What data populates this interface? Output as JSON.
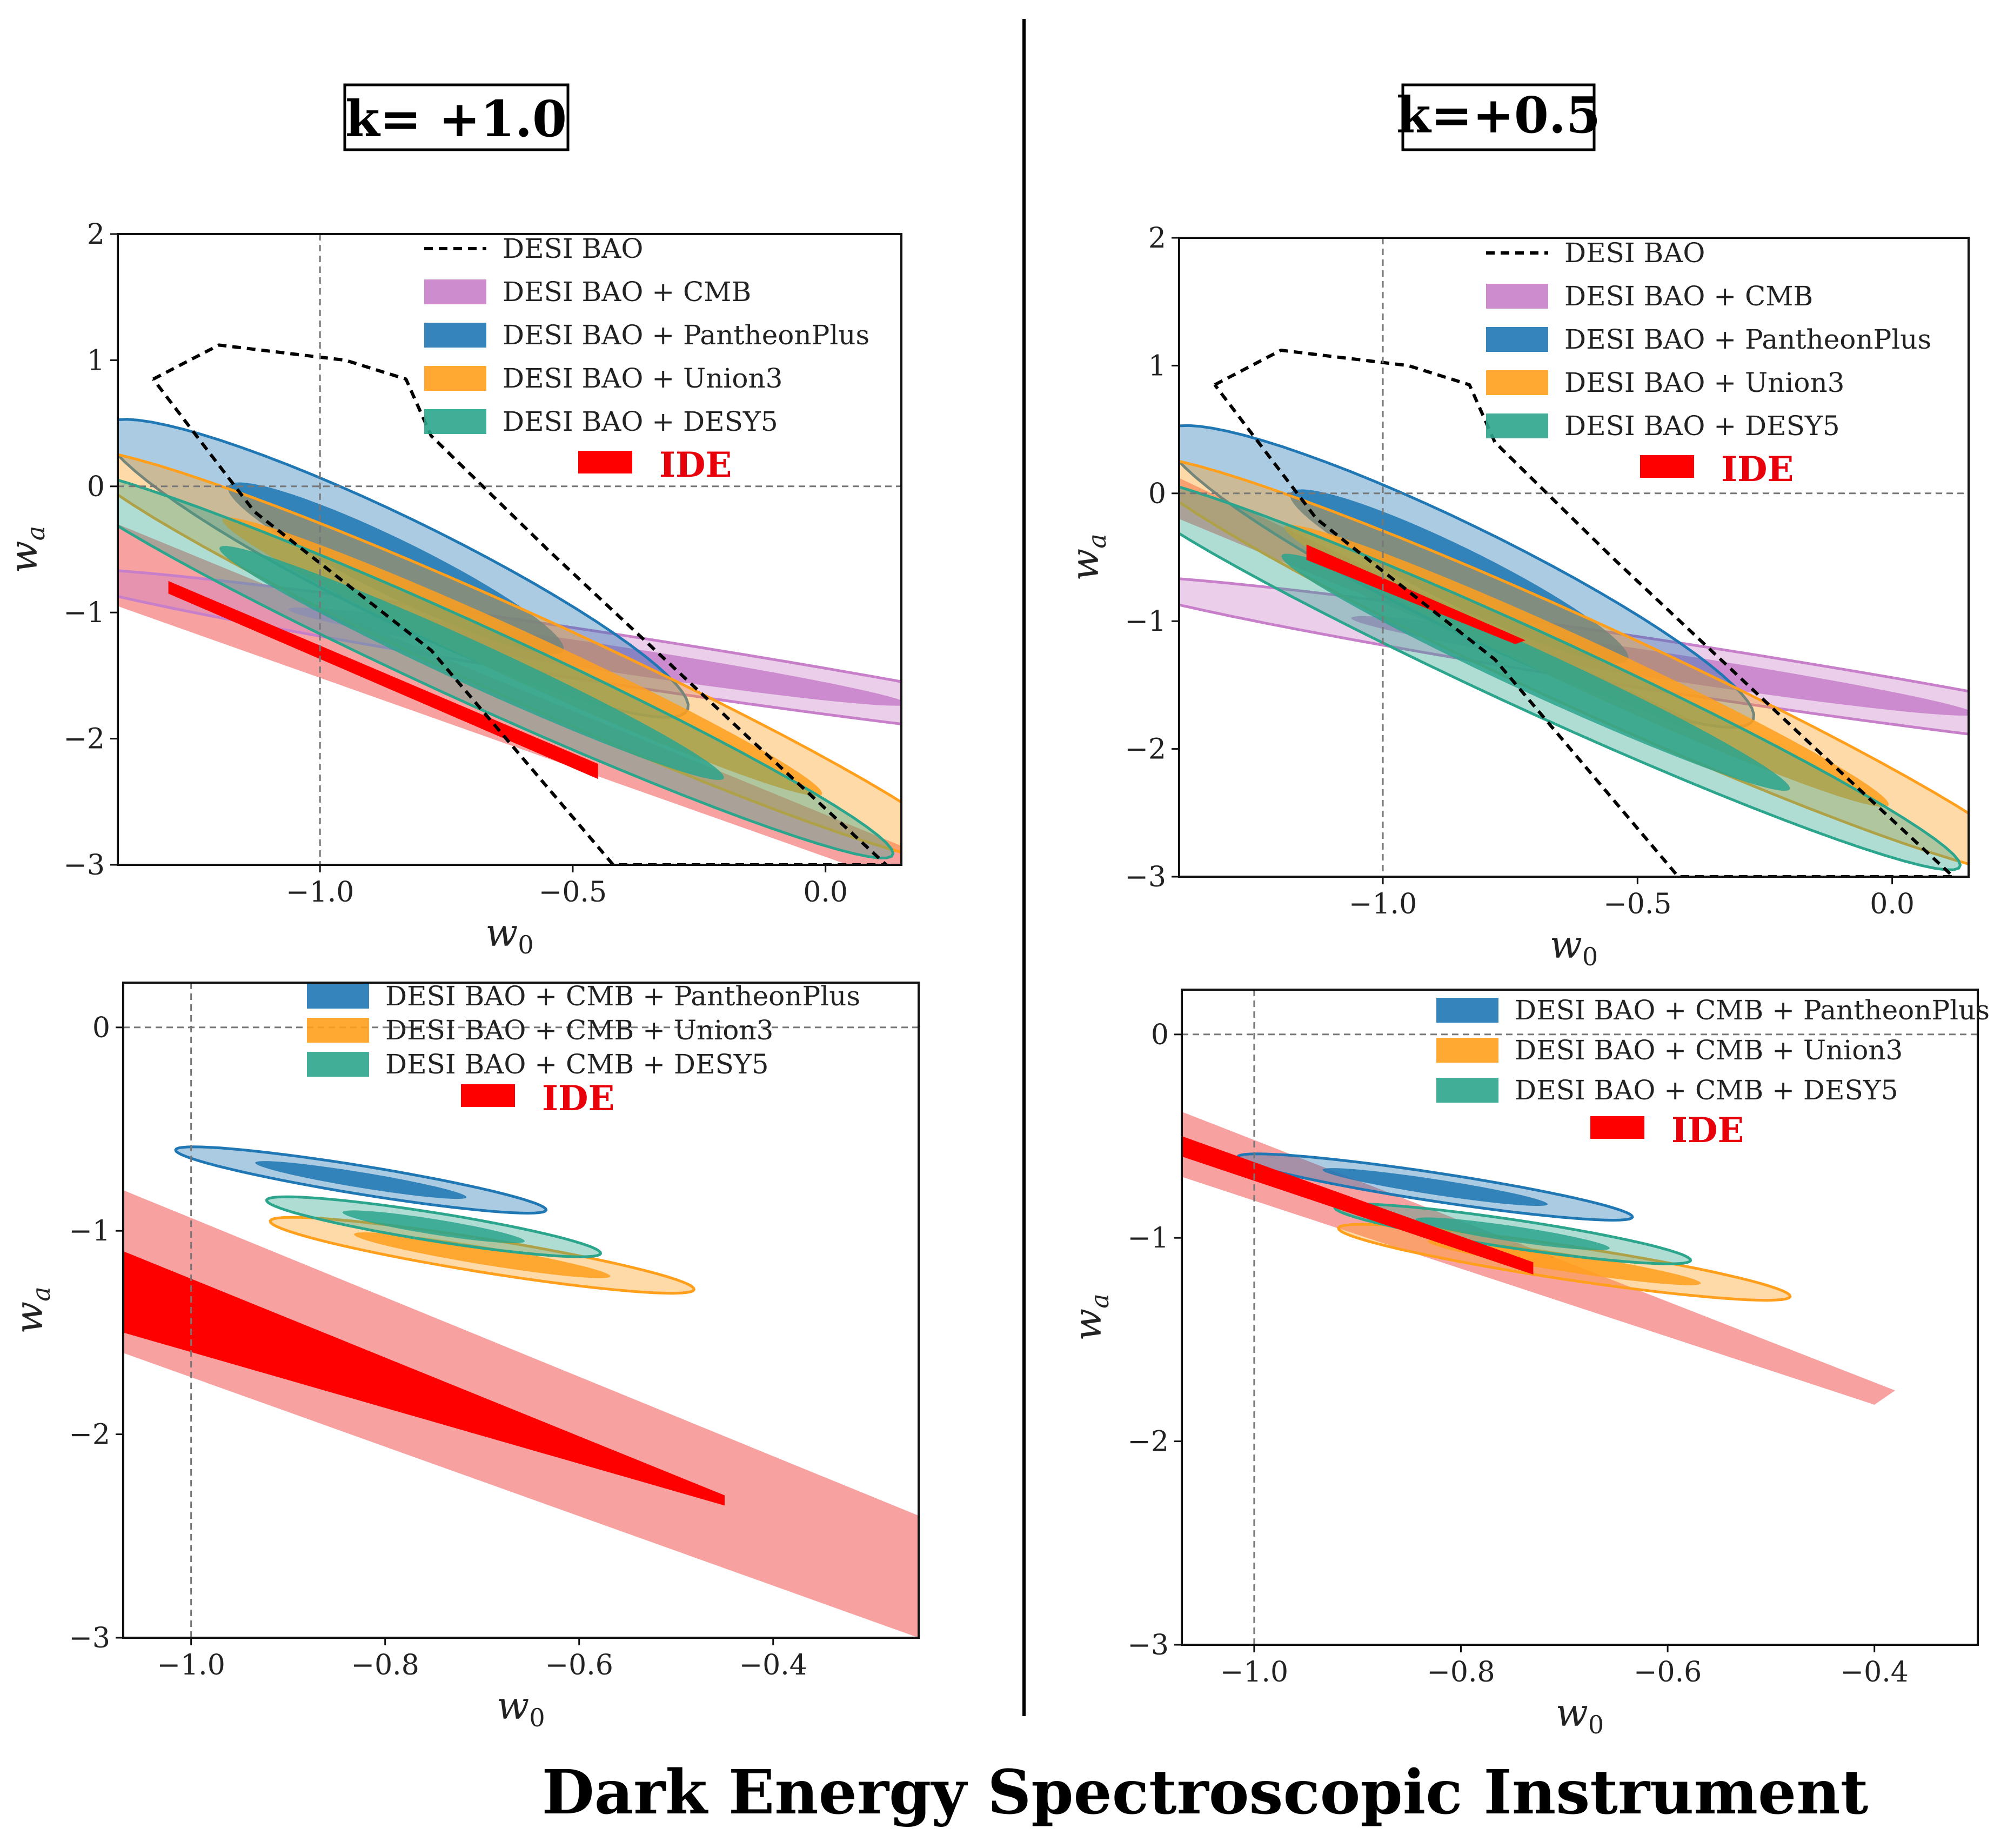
{
  "footer_text": "Dark Energy Spectroscopic Instrument",
  "colors": {
    "desi_bao": "#000000",
    "cmb": "#c77fc9",
    "pantheonplus": "#1f77b4",
    "union3": "#ff9f1c",
    "desy5": "#2ca58d",
    "ide_inner": "#ff0000",
    "ide_outer": "#f7a1a1"
  },
  "columns": [
    {
      "k_label": "k= +1.0"
    },
    {
      "k_label": "k=+0.5"
    }
  ],
  "chart_data": [
    {
      "type": "contour",
      "panel": "top-left",
      "xlabel": "w0",
      "ylabel": "wa",
      "xlim": [
        -1.4,
        0.15
      ],
      "ylim": [
        -3,
        2
      ],
      "xticks": [
        -1.0,
        -0.5,
        0.0
      ],
      "xtick_labels": [
        "−1.0",
        "−0.5",
        "0.0"
      ],
      "yticks": [
        2,
        1,
        0,
        -1,
        -2,
        -3
      ],
      "ytick_labels": [
        "2",
        "1",
        "0",
        "−1",
        "−2",
        "−3"
      ],
      "ref_lines": {
        "w0": -1.0,
        "wa": 0.0
      },
      "legend_position": "top-right",
      "legend": [
        "DESI BAO",
        "DESI BAO + CMB",
        "DESI BAO + PantheonPlus",
        "DESI BAO + Union3",
        "DESI BAO + DESY5",
        "IDE"
      ],
      "contours": [
        {
          "name": "DESI BAO + CMB",
          "color_key": "cmb",
          "center": [
            -0.45,
            -1.35
          ],
          "outer_semi": [
            1.3,
            0.17
          ],
          "inner_semi": [
            0.72,
            0.09
          ],
          "angle_deg": -32
        },
        {
          "name": "DESI BAO + PantheonPlus",
          "color_key": "pantheonplus",
          "center": [
            -0.85,
            -0.65
          ],
          "outer_semi": [
            1.3,
            0.2
          ],
          "inner_semi": [
            0.75,
            0.11
          ],
          "angle_deg": -65
        },
        {
          "name": "DESI BAO + Union3",
          "color_key": "union3",
          "center": [
            -0.6,
            -1.35
          ],
          "outer_semi": [
            1.85,
            0.18
          ],
          "inner_semi": [
            1.25,
            0.1
          ],
          "angle_deg": -62
        },
        {
          "name": "DESI BAO + DESY5",
          "color_key": "desy5",
          "center": [
            -0.7,
            -1.4
          ],
          "outer_semi": [
            1.75,
            0.16
          ],
          "inner_semi": [
            1.05,
            0.09
          ],
          "angle_deg": -62
        }
      ],
      "ide": {
        "outer": [
          [
            -1.4,
            -0.3
          ],
          [
            0.15,
            -2.85
          ],
          [
            0.15,
            -3.15
          ],
          [
            -1.4,
            -0.95
          ]
        ],
        "inner": [
          [
            -1.3,
            -0.75
          ],
          [
            -0.45,
            -2.2
          ],
          [
            -0.45,
            -2.32
          ],
          [
            -1.3,
            -0.85
          ]
        ]
      },
      "desi_bao_dashed": [
        [
          -1.33,
          0.85
        ],
        [
          -1.2,
          1.12
        ],
        [
          -0.95,
          1.0
        ],
        [
          -0.83,
          0.85
        ],
        [
          -0.78,
          0.4
        ],
        [
          -0.55,
          -0.5
        ],
        [
          -0.15,
          -2.0
        ],
        [
          0.12,
          -3.0
        ],
        [
          -0.42,
          -3.0
        ],
        [
          -0.78,
          -1.3
        ],
        [
          -1.13,
          -0.2
        ],
        [
          -1.33,
          0.85
        ]
      ]
    },
    {
      "type": "contour",
      "panel": "top-right",
      "xlabel": "w0",
      "ylabel": "wa",
      "xlim": [
        -1.4,
        0.15
      ],
      "ylim": [
        -3,
        2
      ],
      "xticks": [
        -1.0,
        -0.5,
        0.0
      ],
      "xtick_labels": [
        "−1.0",
        "−0.5",
        "0.0"
      ],
      "yticks": [
        2,
        1,
        0,
        -1,
        -2,
        -3
      ],
      "ytick_labels": [
        "2",
        "1",
        "0",
        "−1",
        "−2",
        "−3"
      ],
      "ref_lines": {
        "w0": -1.0,
        "wa": 0.0
      },
      "legend_position": "top-right",
      "legend": [
        "DESI BAO",
        "DESI BAO + CMB",
        "DESI BAO + PantheonPlus",
        "DESI BAO + Union3",
        "DESI BAO + DESY5",
        "IDE"
      ],
      "contours": [
        {
          "name": "DESI BAO + CMB",
          "color_key": "cmb",
          "center": [
            -0.45,
            -1.35
          ],
          "outer_semi": [
            1.3,
            0.17
          ],
          "inner_semi": [
            0.72,
            0.09
          ],
          "angle_deg": -32
        },
        {
          "name": "DESI BAO + PantheonPlus",
          "color_key": "pantheonplus",
          "center": [
            -0.85,
            -0.65
          ],
          "outer_semi": [
            1.3,
            0.2
          ],
          "inner_semi": [
            0.75,
            0.11
          ],
          "angle_deg": -65
        },
        {
          "name": "DESI BAO + Union3",
          "color_key": "union3",
          "center": [
            -0.6,
            -1.35
          ],
          "outer_semi": [
            1.85,
            0.18
          ],
          "inner_semi": [
            1.25,
            0.1
          ],
          "angle_deg": -62
        },
        {
          "name": "DESI BAO + DESY5",
          "color_key": "desy5",
          "center": [
            -0.7,
            -1.4
          ],
          "outer_semi": [
            1.75,
            0.16
          ],
          "inner_semi": [
            1.05,
            0.09
          ],
          "angle_deg": -62
        }
      ],
      "ide": {
        "outer": [
          [
            -1.4,
            0.12
          ],
          [
            -0.38,
            -1.8
          ],
          [
            -0.4,
            -1.85
          ],
          [
            -1.4,
            -0.2
          ]
        ],
        "inner": [
          [
            -1.15,
            -0.4
          ],
          [
            -0.72,
            -1.15
          ],
          [
            -0.74,
            -1.18
          ],
          [
            -1.15,
            -0.52
          ]
        ]
      },
      "desi_bao_dashed": [
        [
          -1.33,
          0.85
        ],
        [
          -1.2,
          1.12
        ],
        [
          -0.95,
          1.0
        ],
        [
          -0.83,
          0.85
        ],
        [
          -0.78,
          0.4
        ],
        [
          -0.55,
          -0.5
        ],
        [
          -0.15,
          -2.0
        ],
        [
          0.12,
          -3.0
        ],
        [
          -0.42,
          -3.0
        ],
        [
          -0.78,
          -1.3
        ],
        [
          -1.13,
          -0.2
        ],
        [
          -1.33,
          0.85
        ]
      ]
    },
    {
      "type": "contour",
      "panel": "bottom-left",
      "xlabel": "w0",
      "ylabel": "wa",
      "xlim": [
        -1.07,
        -0.25
      ],
      "ylim": [
        -3,
        0.22
      ],
      "xticks": [
        -1.0,
        -0.8,
        -0.6,
        -0.4
      ],
      "xtick_labels": [
        "−1.0",
        "−0.8",
        "−0.6",
        "−0.4"
      ],
      "yticks": [
        0,
        -1,
        -2,
        -3
      ],
      "ytick_labels": [
        "0",
        "−1",
        "−2",
        "−3"
      ],
      "ref_lines": {
        "w0": -1.0,
        "wa": 0.0
      },
      "legend_position": "top-right",
      "legend": [
        "DESI BAO + CMB + PantheonPlus",
        "DESI BAO + CMB + Union3",
        "DESI BAO + CMB + DESY5",
        "IDE"
      ],
      "contours": [
        {
          "name": "DESI BAO + CMB + PantheonPlus",
          "color_key": "pantheonplus",
          "center": [
            -0.825,
            -0.75
          ],
          "outer_semi": [
            0.245,
            0.055
          ],
          "inner_semi": [
            0.14,
            0.03
          ],
          "angle_deg": -40
        },
        {
          "name": "DESI BAO + CMB + Union3",
          "color_key": "union3",
          "center": [
            -0.7,
            -1.12
          ],
          "outer_semi": [
            0.28,
            0.065
          ],
          "inner_semi": [
            0.17,
            0.035
          ],
          "angle_deg": -40
        },
        {
          "name": "DESI BAO + CMB + DESY5",
          "color_key": "desy5",
          "center": [
            -0.75,
            -0.98
          ],
          "outer_semi": [
            0.22,
            0.055
          ],
          "inner_semi": [
            0.12,
            0.03
          ],
          "angle_deg": -40
        }
      ],
      "ide": {
        "outer": [
          [
            -1.07,
            -0.8
          ],
          [
            -0.25,
            -2.4
          ],
          [
            -0.25,
            -3.0
          ],
          [
            -1.07,
            -1.6
          ]
        ],
        "inner": [
          [
            -1.07,
            -1.1
          ],
          [
            -0.45,
            -2.3
          ],
          [
            -0.45,
            -2.35
          ],
          [
            -1.07,
            -1.5
          ]
        ]
      }
    },
    {
      "type": "contour",
      "panel": "bottom-right",
      "xlabel": "w0",
      "ylabel": "wa",
      "xlim": [
        -1.07,
        -0.3
      ],
      "ylim": [
        -3,
        0.22
      ],
      "xticks": [
        -1.0,
        -0.8,
        -0.6,
        -0.4
      ],
      "xtick_labels": [
        "−1.0",
        "−0.8",
        "−0.6",
        "−0.4"
      ],
      "yticks": [
        0,
        -1,
        -2,
        -3
      ],
      "ytick_labels": [
        "0",
        "−1",
        "−2",
        "−3"
      ],
      "ref_lines": {
        "w0": -1.0,
        "wa": 0.0
      },
      "legend_position": "top-right",
      "legend": [
        "DESI BAO + CMB + PantheonPlus",
        "DESI BAO + CMB + Union3",
        "DESI BAO + CMB + DESY5",
        "IDE"
      ],
      "contours": [
        {
          "name": "DESI BAO + CMB + PantheonPlus",
          "color_key": "pantheonplus",
          "center": [
            -0.825,
            -0.75
          ],
          "outer_semi": [
            0.245,
            0.055
          ],
          "inner_semi": [
            0.14,
            0.03
          ],
          "angle_deg": -40
        },
        {
          "name": "DESI BAO + CMB + Union3",
          "color_key": "union3",
          "center": [
            -0.7,
            -1.12
          ],
          "outer_semi": [
            0.28,
            0.065
          ],
          "inner_semi": [
            0.17,
            0.035
          ],
          "angle_deg": -40
        },
        {
          "name": "DESI BAO + CMB + DESY5",
          "color_key": "desy5",
          "center": [
            -0.75,
            -0.98
          ],
          "outer_semi": [
            0.22,
            0.055
          ],
          "inner_semi": [
            0.12,
            0.03
          ],
          "angle_deg": -40
        }
      ],
      "ide": {
        "outer": [
          [
            -1.07,
            -0.38
          ],
          [
            -0.38,
            -1.75
          ],
          [
            -0.4,
            -1.82
          ],
          [
            -1.07,
            -0.7
          ]
        ],
        "inner": [
          [
            -1.07,
            -0.5
          ],
          [
            -0.73,
            -1.12
          ],
          [
            -0.73,
            -1.18
          ],
          [
            -1.07,
            -0.6
          ]
        ]
      }
    }
  ]
}
